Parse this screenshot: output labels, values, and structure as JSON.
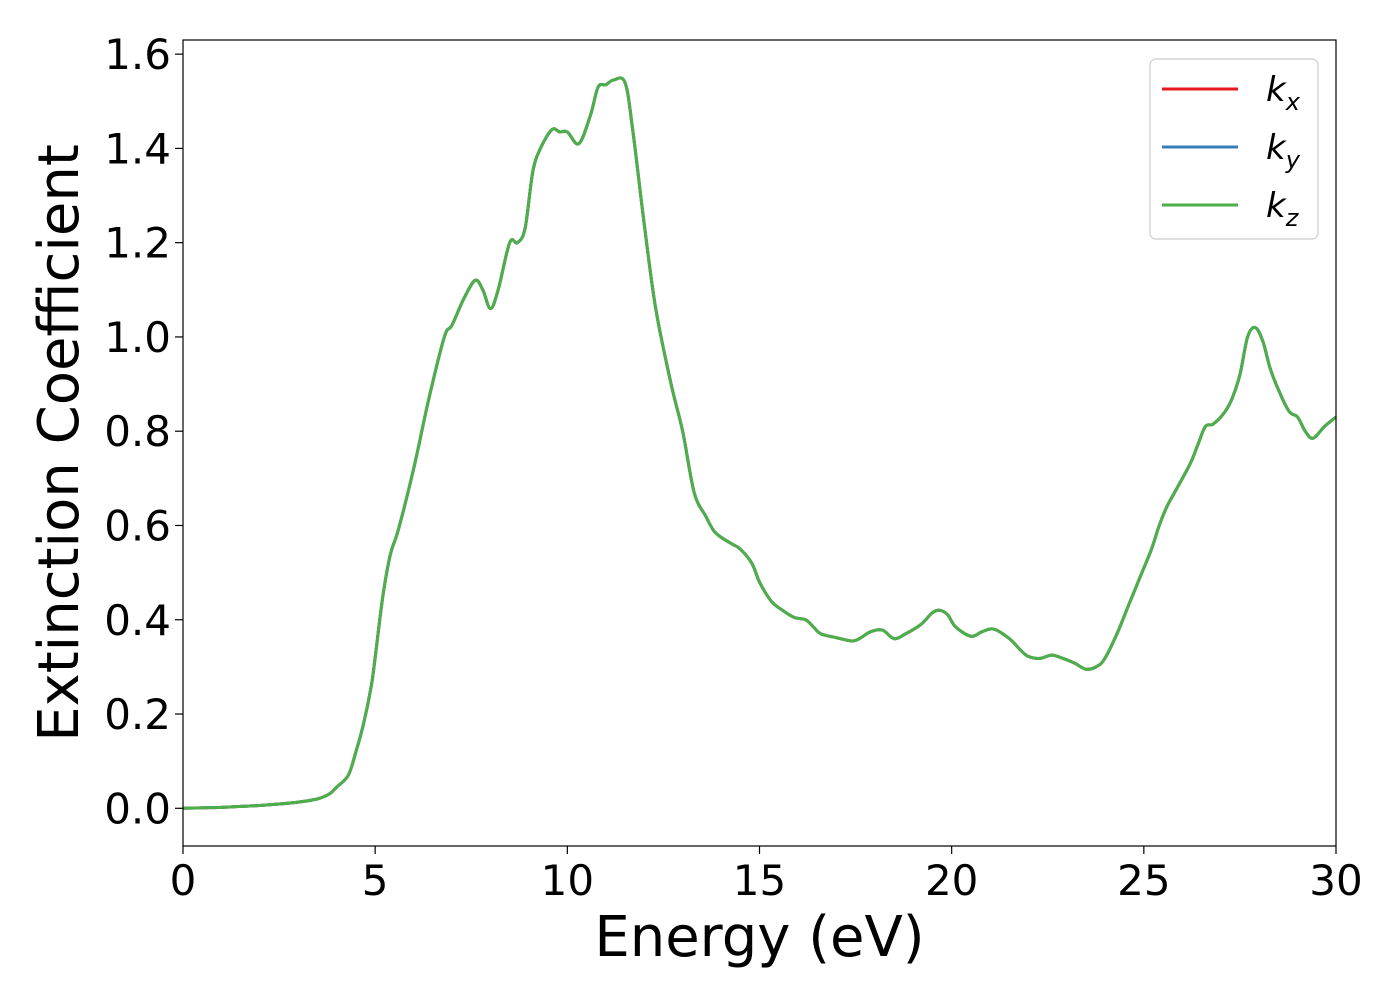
{
  "chart_data": {
    "type": "line",
    "title": "",
    "xlabel": "Energy (eV)",
    "ylabel": "Extinction Coefficient",
    "xlim": [
      0,
      30
    ],
    "ylim": [
      -0.08,
      1.63
    ],
    "xticks": [
      0,
      5,
      10,
      15,
      20,
      25,
      30
    ],
    "xtick_labels": [
      "0",
      "5",
      "10",
      "15",
      "20",
      "25",
      "30"
    ],
    "yticks": [
      0.0,
      0.2,
      0.4,
      0.6,
      0.8,
      1.0,
      1.2,
      1.4,
      1.6
    ],
    "ytick_labels": [
      "0.0",
      "0.2",
      "0.4",
      "0.6",
      "0.8",
      "1.0",
      "1.2",
      "1.4",
      "1.6"
    ],
    "grid": false,
    "legend_position": "top-right",
    "x": [
      0,
      0.5,
      1,
      1.5,
      2,
      2.5,
      3,
      3.5,
      3.8,
      4.0,
      4.3,
      4.5,
      4.7,
      4.9,
      5.0,
      5.2,
      5.4,
      5.6,
      6.0,
      6.4,
      6.8,
      7.0,
      7.3,
      7.6,
      7.8,
      8.0,
      8.2,
      8.5,
      8.7,
      8.9,
      9.1,
      9.3,
      9.6,
      9.8,
      10.0,
      10.3,
      10.6,
      10.8,
      11.0,
      11.2,
      11.5,
      11.7,
      12.0,
      12.3,
      12.7,
      13.0,
      13.3,
      13.6,
      13.8,
      14.0,
      14.3,
      14.5,
      14.8,
      15.0,
      15.3,
      15.6,
      15.9,
      16.2,
      16.4,
      16.6,
      17.0,
      17.4,
      17.6,
      17.9,
      18.2,
      18.5,
      18.8,
      19.2,
      19.5,
      19.7,
      19.9,
      20.1,
      20.5,
      20.8,
      21.1,
      21.5,
      21.8,
      22.0,
      22.3,
      22.6,
      22.9,
      23.2,
      23.5,
      23.8,
      24.0,
      24.3,
      24.6,
      24.9,
      25.2,
      25.4,
      25.6,
      25.8,
      26.2,
      26.4,
      26.6,
      26.8,
      27.1,
      27.3,
      27.5,
      27.7,
      27.9,
      28.1,
      28.3,
      28.6,
      28.8,
      29.0,
      29.2,
      29.4,
      29.7,
      30.0
    ],
    "series": [
      {
        "name": "k_x",
        "color": "#e41a1c",
        "values": [
          0,
          0.001,
          0.002,
          0.004,
          0.006,
          0.009,
          0.013,
          0.02,
          0.03,
          0.045,
          0.07,
          0.12,
          0.18,
          0.26,
          0.32,
          0.45,
          0.54,
          0.59,
          0.72,
          0.87,
          1.0,
          1.025,
          1.08,
          1.12,
          1.1,
          1.06,
          1.1,
          1.2,
          1.2,
          1.23,
          1.35,
          1.4,
          1.44,
          1.435,
          1.435,
          1.41,
          1.47,
          1.53,
          1.535,
          1.545,
          1.54,
          1.44,
          1.24,
          1.06,
          0.9,
          0.8,
          0.67,
          0.62,
          0.59,
          0.575,
          0.56,
          0.55,
          0.52,
          0.48,
          0.44,
          0.42,
          0.405,
          0.4,
          0.385,
          0.37,
          0.362,
          0.355,
          0.36,
          0.375,
          0.378,
          0.36,
          0.37,
          0.39,
          0.415,
          0.42,
          0.41,
          0.385,
          0.365,
          0.375,
          0.38,
          0.36,
          0.335,
          0.322,
          0.318,
          0.325,
          0.318,
          0.308,
          0.295,
          0.302,
          0.32,
          0.37,
          0.43,
          0.49,
          0.55,
          0.6,
          0.64,
          0.67,
          0.73,
          0.77,
          0.81,
          0.815,
          0.84,
          0.87,
          0.92,
          1.0,
          1.02,
          0.99,
          0.93,
          0.87,
          0.84,
          0.83,
          0.8,
          0.785,
          0.81,
          0.83
        ]
      },
      {
        "name": "k_y",
        "color": "#377eb8",
        "values": [
          0,
          0.001,
          0.002,
          0.004,
          0.006,
          0.009,
          0.013,
          0.02,
          0.03,
          0.045,
          0.07,
          0.12,
          0.18,
          0.26,
          0.32,
          0.45,
          0.54,
          0.59,
          0.72,
          0.87,
          1.0,
          1.025,
          1.08,
          1.12,
          1.1,
          1.06,
          1.1,
          1.2,
          1.2,
          1.23,
          1.35,
          1.4,
          1.44,
          1.435,
          1.435,
          1.41,
          1.47,
          1.53,
          1.535,
          1.545,
          1.54,
          1.44,
          1.24,
          1.06,
          0.9,
          0.8,
          0.67,
          0.62,
          0.59,
          0.575,
          0.56,
          0.55,
          0.52,
          0.48,
          0.44,
          0.42,
          0.405,
          0.4,
          0.385,
          0.37,
          0.362,
          0.355,
          0.36,
          0.375,
          0.378,
          0.36,
          0.37,
          0.39,
          0.415,
          0.42,
          0.41,
          0.385,
          0.365,
          0.375,
          0.38,
          0.36,
          0.335,
          0.322,
          0.318,
          0.325,
          0.318,
          0.308,
          0.295,
          0.302,
          0.32,
          0.37,
          0.43,
          0.49,
          0.55,
          0.6,
          0.64,
          0.67,
          0.73,
          0.77,
          0.81,
          0.815,
          0.84,
          0.87,
          0.92,
          1.0,
          1.02,
          0.99,
          0.93,
          0.87,
          0.84,
          0.83,
          0.8,
          0.785,
          0.81,
          0.83
        ]
      },
      {
        "name": "k_z",
        "color": "#4daf4a",
        "values": [
          0,
          0.001,
          0.002,
          0.004,
          0.006,
          0.009,
          0.013,
          0.02,
          0.03,
          0.045,
          0.07,
          0.12,
          0.18,
          0.26,
          0.32,
          0.45,
          0.54,
          0.59,
          0.72,
          0.87,
          1.0,
          1.025,
          1.08,
          1.12,
          1.1,
          1.06,
          1.1,
          1.2,
          1.2,
          1.23,
          1.35,
          1.4,
          1.44,
          1.435,
          1.435,
          1.41,
          1.47,
          1.53,
          1.535,
          1.545,
          1.54,
          1.44,
          1.24,
          1.06,
          0.9,
          0.8,
          0.67,
          0.62,
          0.59,
          0.575,
          0.56,
          0.55,
          0.52,
          0.48,
          0.44,
          0.42,
          0.405,
          0.4,
          0.385,
          0.37,
          0.362,
          0.355,
          0.36,
          0.375,
          0.378,
          0.36,
          0.37,
          0.39,
          0.415,
          0.42,
          0.41,
          0.385,
          0.365,
          0.375,
          0.38,
          0.36,
          0.335,
          0.322,
          0.318,
          0.325,
          0.318,
          0.308,
          0.295,
          0.302,
          0.32,
          0.37,
          0.43,
          0.49,
          0.55,
          0.6,
          0.64,
          0.67,
          0.73,
          0.77,
          0.81,
          0.815,
          0.84,
          0.87,
          0.92,
          1.0,
          1.02,
          0.99,
          0.93,
          0.87,
          0.84,
          0.83,
          0.8,
          0.785,
          0.81,
          0.83
        ]
      }
    ],
    "legend": [
      {
        "base": "k",
        "sub": "x"
      },
      {
        "base": "k",
        "sub": "y"
      },
      {
        "base": "k",
        "sub": "z"
      }
    ]
  }
}
